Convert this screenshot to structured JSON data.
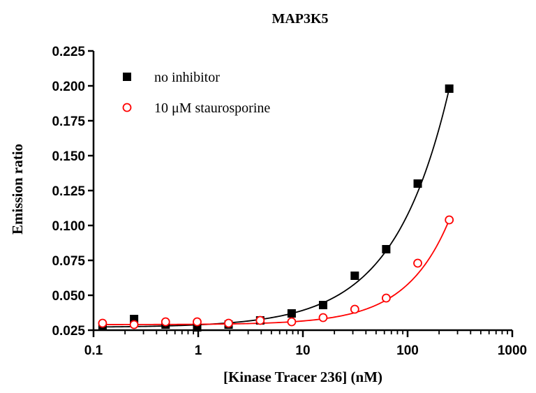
{
  "chart_data": {
    "type": "scatter",
    "title": "MAP3K5",
    "xlabel": "[Kinase Tracer 236] (nM)",
    "ylabel": "Emission ratio",
    "xscale": "log",
    "xlim": [
      0.1,
      1000
    ],
    "ylim": [
      0.025,
      0.225
    ],
    "x_tick_labels": [
      "0.1",
      "1",
      "10",
      "100",
      "1000"
    ],
    "y_tick_labels": [
      "0.025",
      "0.050",
      "0.075",
      "0.100",
      "0.125",
      "0.150",
      "0.175",
      "0.200",
      "0.225"
    ],
    "grid": false,
    "legend_position": "top-left",
    "series": [
      {
        "name": "no inhibitor",
        "marker": "filled-square",
        "color": "#000000",
        "x": [
          0.122,
          0.244,
          0.488,
          0.977,
          1.95,
          3.91,
          7.81,
          15.6,
          31.3,
          62.5,
          125,
          250
        ],
        "y": [
          0.028,
          0.033,
          0.029,
          0.027,
          0.029,
          0.032,
          0.037,
          0.043,
          0.064,
          0.083,
          0.13,
          0.198
        ],
        "fit_color": "#000000"
      },
      {
        "name": "10 μM staurosporine",
        "marker": "open-circle",
        "color": "#ff0000",
        "x": [
          0.122,
          0.244,
          0.488,
          0.977,
          1.95,
          3.91,
          7.81,
          15.6,
          31.3,
          62.5,
          125,
          250
        ],
        "y": [
          0.03,
          0.029,
          0.031,
          0.031,
          0.03,
          0.032,
          0.031,
          0.034,
          0.04,
          0.048,
          0.073,
          0.104
        ],
        "fit_color": "#ff0000"
      }
    ]
  }
}
